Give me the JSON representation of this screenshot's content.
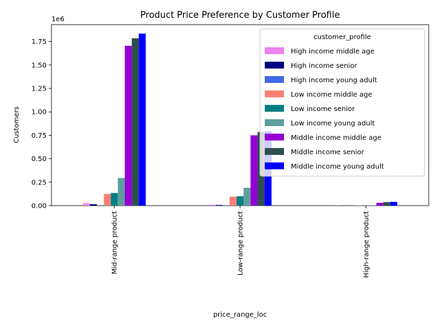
{
  "chart_data": {
    "type": "bar",
    "title": "Product Price Preference by Customer Profile",
    "xlabel": "price_range_loc",
    "ylabel": "Customers",
    "y_multiplier_label": "1e6",
    "categories": [
      "Mid-range product",
      "Low-range product",
      "High-range product"
    ],
    "ylim": [
      0,
      1930000
    ],
    "yticks": [
      0,
      250000,
      500000,
      750000,
      1000000,
      1250000,
      1500000,
      1750000
    ],
    "ytick_labels": [
      "0.00",
      "0.25",
      "0.50",
      "0.75",
      "1.00",
      "1.25",
      "1.50",
      "1.75"
    ],
    "legend": {
      "title": "customer_profile",
      "position": "upper-right"
    },
    "series": [
      {
        "name": "High income middle age",
        "color": "#ee82ee",
        "values": [
          25000,
          10000,
          1500
        ]
      },
      {
        "name": "High income senior",
        "color": "#000080",
        "values": [
          15000,
          7000,
          1000
        ]
      },
      {
        "name": "High income young adult",
        "color": "#4169e1",
        "values": [
          5000,
          2000,
          500
        ]
      },
      {
        "name": "Low income middle age",
        "color": "#fa8072",
        "values": [
          125000,
          95000,
          2000
        ]
      },
      {
        "name": "Low income senior",
        "color": "#008080",
        "values": [
          135000,
          100000,
          2000
        ]
      },
      {
        "name": "Low income young adult",
        "color": "#5f9ea0",
        "values": [
          295000,
          190000,
          3000
        ]
      },
      {
        "name": "Middle income middle age",
        "color": "#9400d3",
        "values": [
          1705000,
          750000,
          30000
        ]
      },
      {
        "name": "Middle income senior",
        "color": "#2f4f4f",
        "values": [
          1785000,
          785000,
          38000
        ]
      },
      {
        "name": "Middle income young adult",
        "color": "#0000ff",
        "values": [
          1835000,
          795000,
          40000
        ]
      }
    ]
  }
}
